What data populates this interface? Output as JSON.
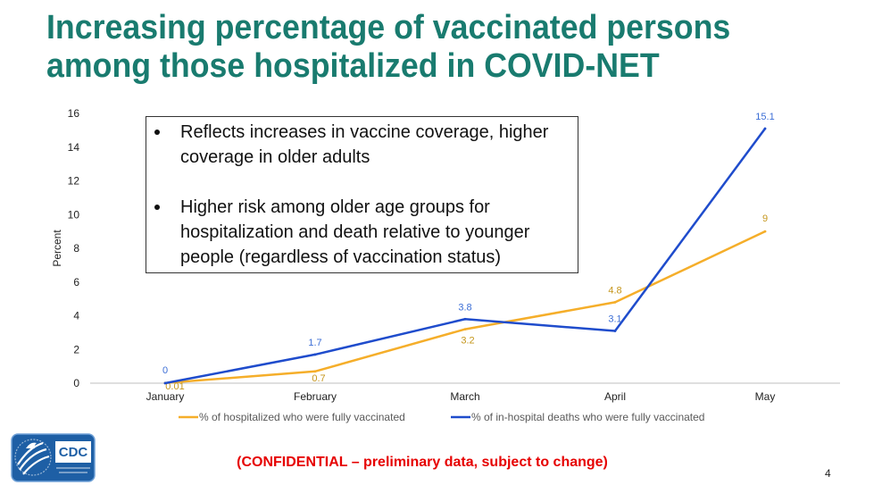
{
  "slide": {
    "title": "Increasing percentage of vaccinated persons among those hospitalized in COVID-NET",
    "confidential_note": "(CONFIDENTIAL – preliminary data, subject to change)",
    "page_number": "4",
    "colors": {
      "title": "#197b6f",
      "confidential": "#e60000",
      "logo_background": "#1e5fa5"
    }
  },
  "callout": {
    "bullets": [
      "Reflects increases in vaccine coverage, higher coverage in older adults",
      "Higher risk among older age groups for hospitalization and death relative to younger people (regardless of vaccination status)"
    ]
  },
  "logo": {
    "icon": "hhs-eagle-icon",
    "text": "CDC"
  },
  "chart_data": {
    "type": "line",
    "categories": [
      "January",
      "February",
      "March",
      "April",
      "May"
    ],
    "series": [
      {
        "name": "% of hospitalized who were fully vaccinated",
        "values": [
          0.01,
          0.7,
          3.2,
          4.8,
          9
        ],
        "color": "#f5ae2a",
        "label_color": "#c5961c"
      },
      {
        "name": "% of in-hospital deaths who were fully vaccinated",
        "values": [
          0,
          1.7,
          3.8,
          3.1,
          15.1
        ],
        "color": "#1f4ccc",
        "label_color": "#3d6fd6"
      }
    ],
    "ylabel": "Percent",
    "ylim": [
      0,
      16
    ],
    "yticks": [
      0,
      2,
      4,
      6,
      8,
      10,
      12,
      14,
      16
    ],
    "grid": false,
    "legend": "bottom",
    "data_labels": true
  }
}
